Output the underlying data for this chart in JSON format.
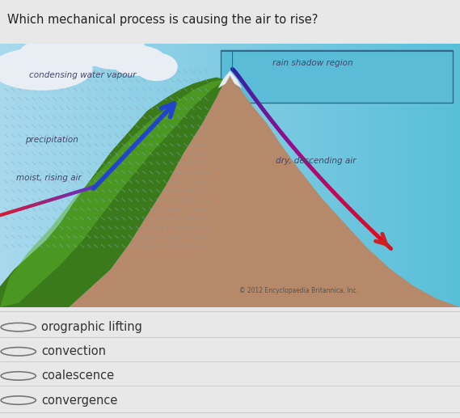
{
  "question": "Which mechanical process is causing the air to rise?",
  "options": [
    "orographic lifting",
    "convection",
    "coalescence",
    "convergence"
  ],
  "fig_bg": "#e8e8e8",
  "question_fontsize": 10.5,
  "option_fontsize": 10.5,
  "sky_left": "#a8d8ee",
  "sky_right": "#5bbcd8",
  "rain_shadow_sky": "#6ec8e0",
  "mountain_brown": "#b5896a",
  "mountain_green_dark": "#3a7a1a",
  "mountain_green_light": "#4fa020",
  "snow_color": "#e8eef0",
  "cloud_color": "#e8eef4",
  "rain_color": "#7aaabb",
  "label_color": "#444466",
  "copyright_color": "#555555"
}
